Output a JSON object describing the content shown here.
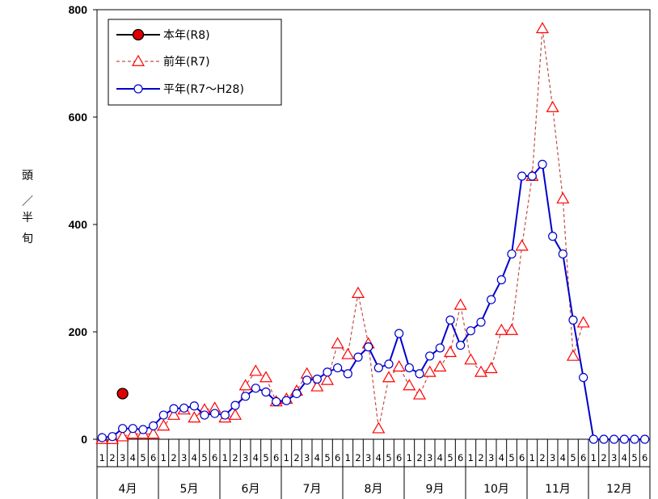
{
  "chart_data": {
    "type": "line",
    "ylabel": [
      "頭",
      "／",
      "半",
      "旬"
    ],
    "ylim": [
      0,
      800
    ],
    "yticks": [
      0,
      200,
      400,
      600,
      800
    ],
    "months": [
      "4月",
      "5月",
      "6月",
      "7月",
      "8月",
      "9月",
      "10月",
      "11月",
      "12月"
    ],
    "dekad_labels": [
      "1",
      "2",
      "3",
      "4",
      "5",
      "6"
    ],
    "legend_position": "top-left",
    "grid": false,
    "series": [
      {
        "name": "本年(R8)",
        "color": "#000000",
        "marker": "filled-circle",
        "marker_color": "#e00000",
        "line_style": "solid",
        "values": [
          null,
          null,
          85,
          null,
          null,
          null,
          null,
          null,
          null,
          null,
          null,
          null,
          null,
          null,
          null,
          null,
          null,
          null,
          null,
          null,
          null,
          null,
          null,
          null,
          null,
          null,
          null,
          null,
          null,
          null,
          null,
          null,
          null,
          null,
          null,
          null,
          null,
          null,
          null,
          null,
          null,
          null,
          null,
          null,
          null,
          null,
          null,
          null,
          null,
          null,
          null,
          null,
          null,
          null
        ]
      },
      {
        "name": "前年(R7)",
        "color": "#c0504d",
        "marker": "triangle",
        "marker_color": "#ff0000",
        "line_style": "dashed",
        "values": [
          0,
          0,
          5,
          10,
          10,
          10,
          25,
          45,
          55,
          40,
          55,
          58,
          40,
          45,
          100,
          127,
          115,
          70,
          75,
          90,
          122,
          98,
          110,
          178,
          158,
          272,
          178,
          20,
          115,
          135,
          100,
          83,
          125,
          135,
          162,
          250,
          148,
          125,
          132,
          203,
          203,
          360,
          490,
          765,
          618,
          448,
          155,
          217,
          null,
          null,
          null,
          null,
          null,
          null
        ]
      },
      {
        "name": "平年(R7～H28)",
        "color": "#0000cc",
        "marker": "open-circle",
        "marker_color": "#0000cc",
        "line_style": "solid",
        "values": [
          3,
          5,
          20,
          20,
          18,
          25,
          45,
          57,
          58,
          62,
          45,
          48,
          45,
          63,
          80,
          95,
          88,
          70,
          72,
          85,
          110,
          112,
          125,
          133,
          122,
          153,
          172,
          133,
          140,
          197,
          133,
          122,
          155,
          170,
          222,
          175,
          202,
          218,
          260,
          297,
          345,
          490,
          490,
          512,
          378,
          345,
          222,
          115,
          0,
          0,
          0,
          0,
          0,
          0
        ]
      }
    ]
  }
}
